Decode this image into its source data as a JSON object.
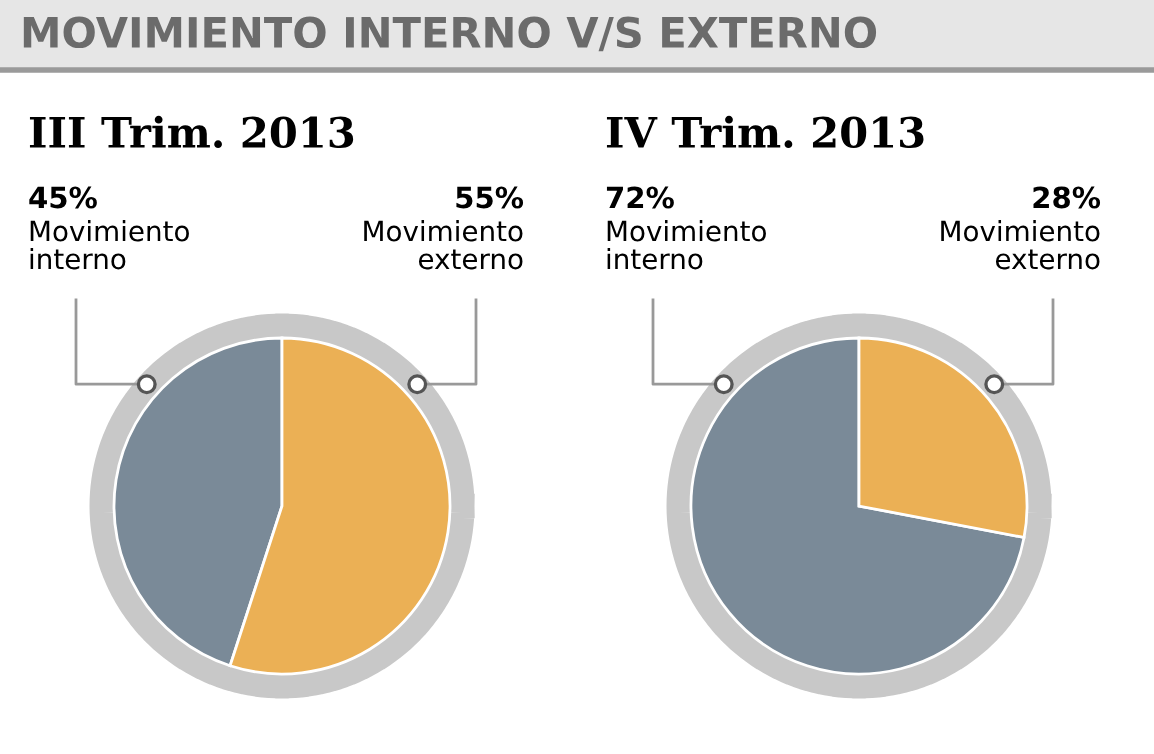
{
  "chart_data": [
    {
      "type": "pie",
      "title": "III Trim. 2013",
      "annotations": [
        "MOVIMIENTO INTERNO V/S EXTERNO"
      ],
      "categories": [
        "Movimiento interno",
        "Movimiento externo"
      ],
      "values": [
        45,
        55
      ],
      "value_labels": [
        "45%",
        "55%"
      ],
      "colors": [
        "#7a8a98",
        "#ebb055"
      ]
    },
    {
      "type": "pie",
      "title": "IV Trim. 2013",
      "categories": [
        "Movimiento interno",
        "Movimiento externo"
      ],
      "values": [
        72,
        28
      ],
      "value_labels": [
        "72%",
        "28%"
      ],
      "colors": [
        "#7a8a98",
        "#ebb055"
      ]
    }
  ]
}
